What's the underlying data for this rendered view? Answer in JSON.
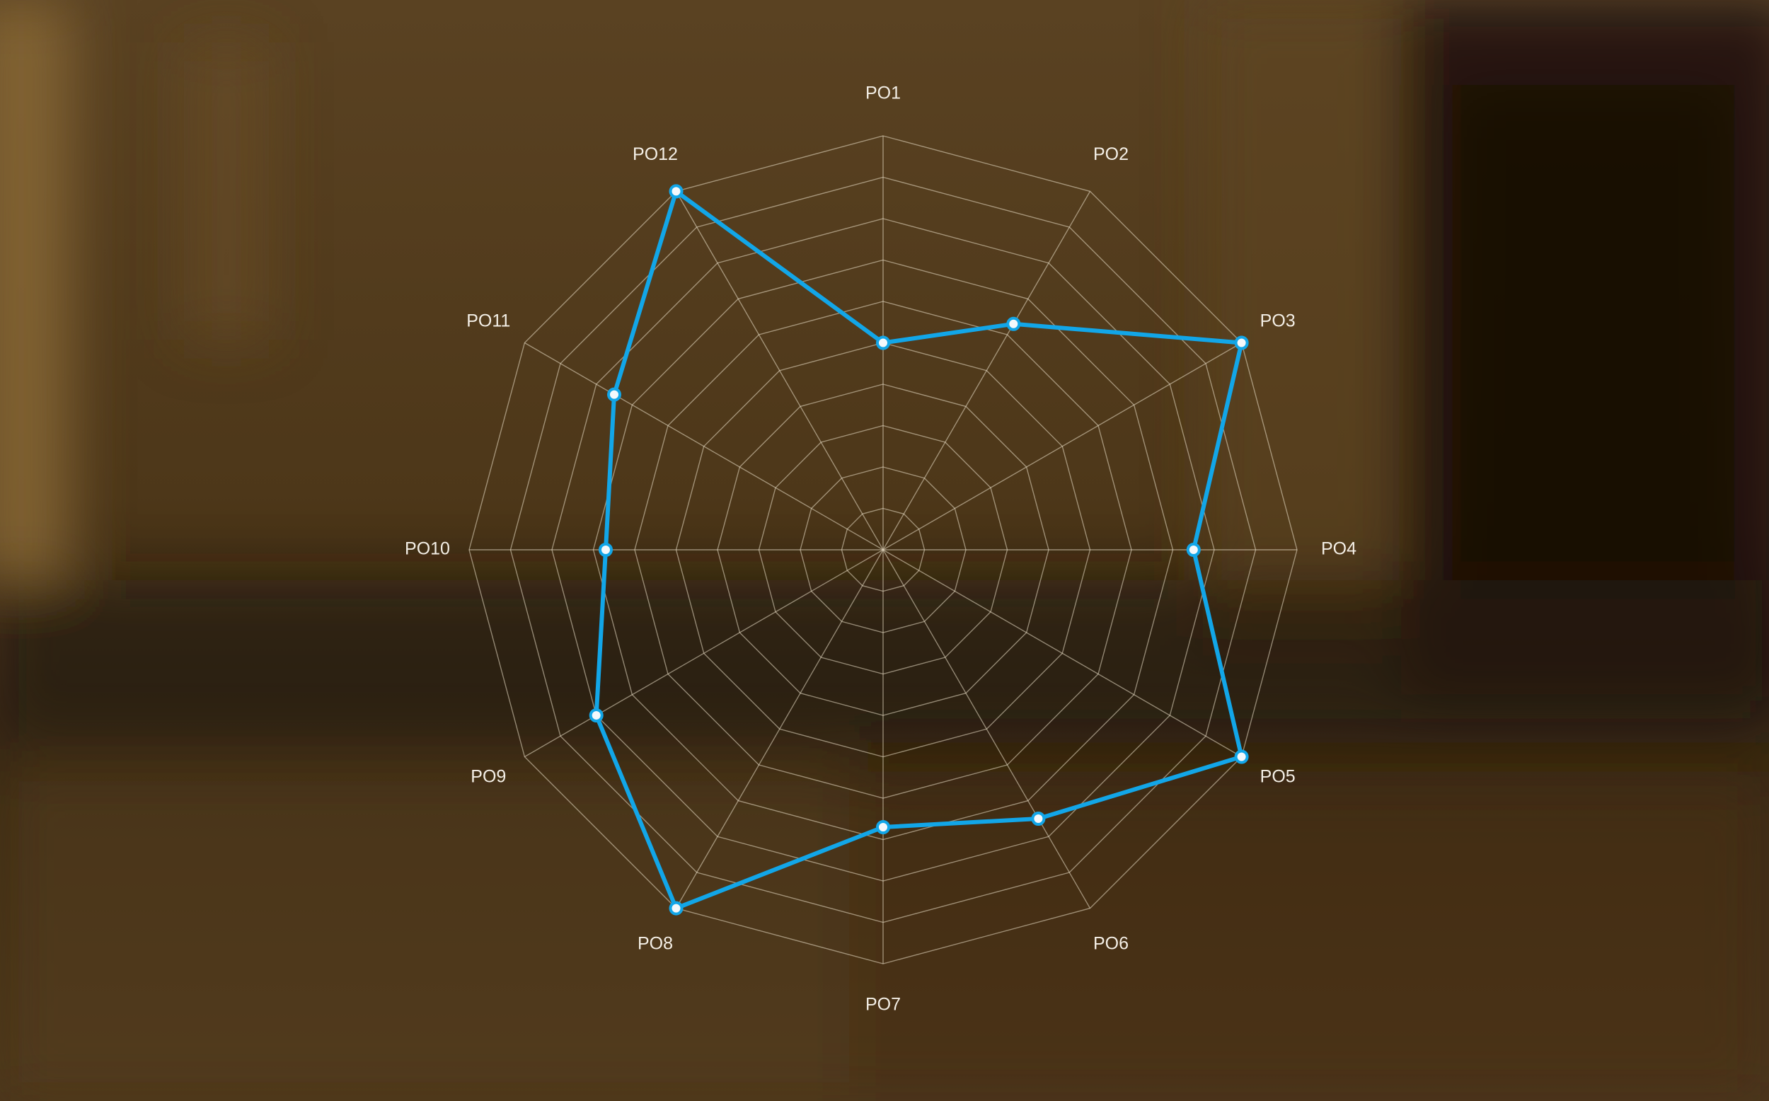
{
  "chart_data": {
    "type": "radar",
    "axes": [
      "PO1",
      "PO2",
      "PO3",
      "PO4",
      "PO5",
      "PO6",
      "PO7",
      "PO8",
      "PO9",
      "PO10",
      "PO11",
      "PO12"
    ],
    "series": [
      {
        "values": [
          5,
          6.3,
          10,
          7.5,
          10,
          7.5,
          6.7,
          10,
          8,
          6.7,
          7.5,
          10
        ],
        "color": "#12a6e8"
      }
    ],
    "rlim": [
      0,
      10
    ],
    "rings": 10,
    "grid": true,
    "legend": false
  },
  "colors": {
    "accent": "#12a6e8",
    "grid": "#e8dcc4",
    "label": "#f4efe6"
  }
}
